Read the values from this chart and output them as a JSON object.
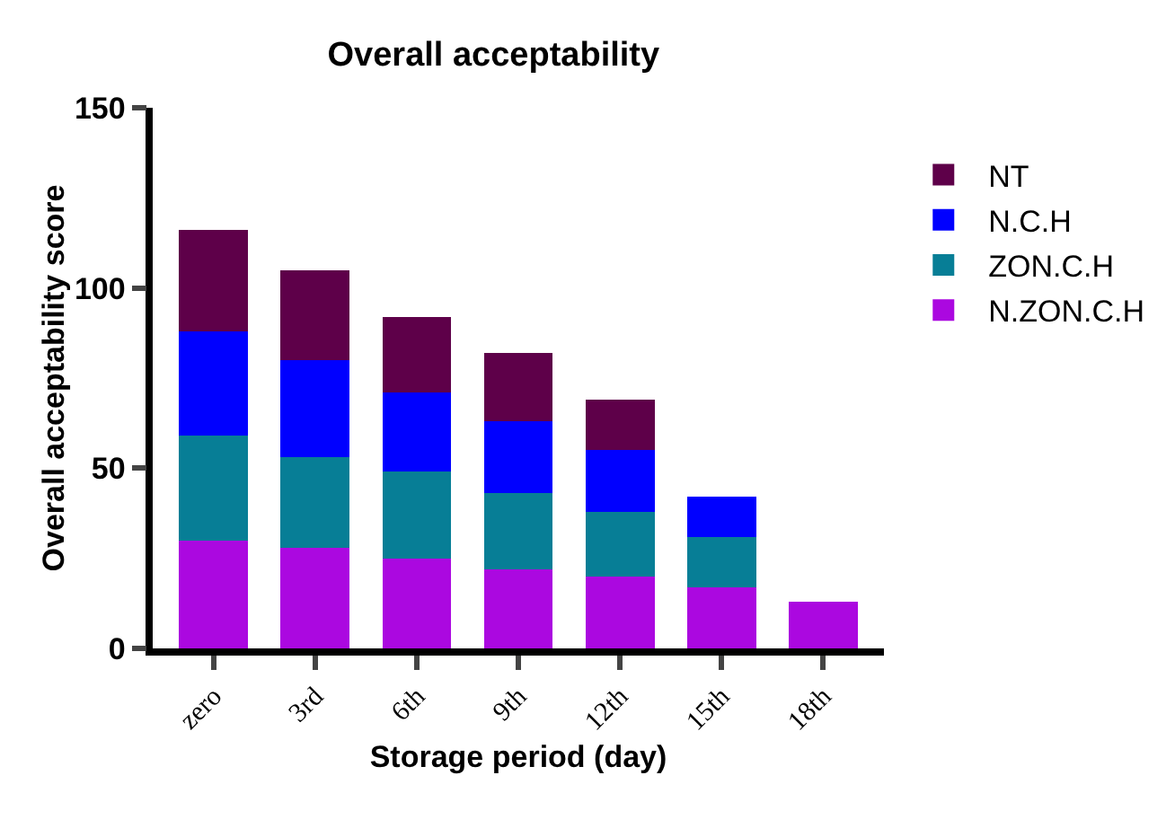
{
  "chart_data": {
    "type": "bar",
    "title": "Overall acceptability",
    "xlabel": "Storage period (day)",
    "ylabel": "Overall acceptability score",
    "categories": [
      "zero",
      "3rd",
      "6th",
      "9th",
      "12th",
      "15th",
      "18th"
    ],
    "stacked": true,
    "ylim": [
      0,
      150
    ],
    "yticks": [
      0,
      50,
      100,
      150
    ],
    "grid": false,
    "legend": "right",
    "series": [
      {
        "name": "N.ZON.C.H",
        "color": "#ab08e0",
        "values": [
          30,
          28,
          25,
          22,
          20,
          17,
          13
        ]
      },
      {
        "name": "ZON.C.H",
        "color": "#077e96",
        "values": [
          29,
          25,
          24,
          21,
          18,
          14,
          null
        ]
      },
      {
        "name": "N.C.H",
        "color": "#0000ff",
        "values": [
          29,
          27,
          22,
          20,
          17,
          11,
          null
        ]
      },
      {
        "name": "NT",
        "color": "#5e0049",
        "values": [
          28,
          25,
          21,
          19,
          14,
          null,
          null
        ]
      }
    ]
  }
}
